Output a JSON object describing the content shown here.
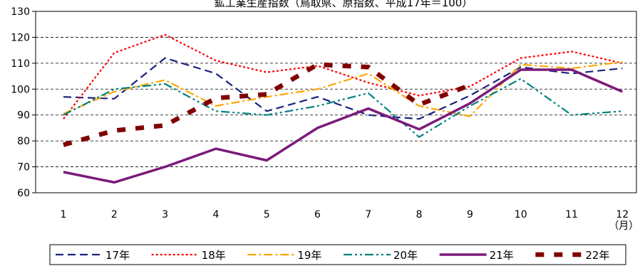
{
  "chart_data": {
    "type": "line",
    "title": "鉱工業生産指数（鳥取県、原指数、平成17年＝100）",
    "categories": [
      "1",
      "2",
      "3",
      "4",
      "5",
      "6",
      "7",
      "8",
      "9",
      "10",
      "11",
      "12"
    ],
    "x_unit": "（月）",
    "ylim": [
      60,
      130
    ],
    "yticks": [
      "60",
      "70",
      "80",
      "90",
      "100",
      "110",
      "120",
      "130"
    ],
    "grid": true,
    "legend_position": "bottom",
    "series": [
      {
        "name": "17年",
        "color": "#1a237e",
        "style": "dashed",
        "values": [
          97.0,
          96.3,
          112.0,
          106.0,
          91.5,
          97.0,
          90.0,
          88.5,
          97.5,
          108.5,
          106.0,
          108.0
        ]
      },
      {
        "name": "18年",
        "color": "#ff0000",
        "style": "dotted",
        "values": [
          88.5,
          114.0,
          121.0,
          111.0,
          106.5,
          109.0,
          102.5,
          97.5,
          101.0,
          112.0,
          114.5,
          110.0
        ]
      },
      {
        "name": "19年",
        "color": "#ffa500",
        "style": "dashdot",
        "values": [
          90.5,
          99.0,
          103.5,
          93.5,
          97.0,
          100.0,
          106.0,
          93.5,
          89.5,
          109.5,
          108.0,
          110.5
        ]
      },
      {
        "name": "20年",
        "color": "#008080",
        "style": "dashdotdot",
        "values": [
          90.0,
          100.0,
          102.0,
          91.5,
          90.0,
          93.5,
          98.5,
          81.5,
          93.5,
          104.0,
          90.0,
          91.5
        ]
      },
      {
        "name": "21年",
        "color": "#7b1a7b",
        "style": "solid",
        "values": [
          68.0,
          64.0,
          70.0,
          77.0,
          72.5,
          85.0,
          92.5,
          84.5,
          94.5,
          107.5,
          107.5,
          99.0
        ]
      },
      {
        "name": "22年",
        "color": "#800000",
        "style": "thickdash",
        "values": [
          78.5,
          84.0,
          86.0,
          96.5,
          98.0,
          109.5,
          108.5,
          94.0,
          101.5,
          null,
          null,
          null
        ]
      }
    ]
  }
}
